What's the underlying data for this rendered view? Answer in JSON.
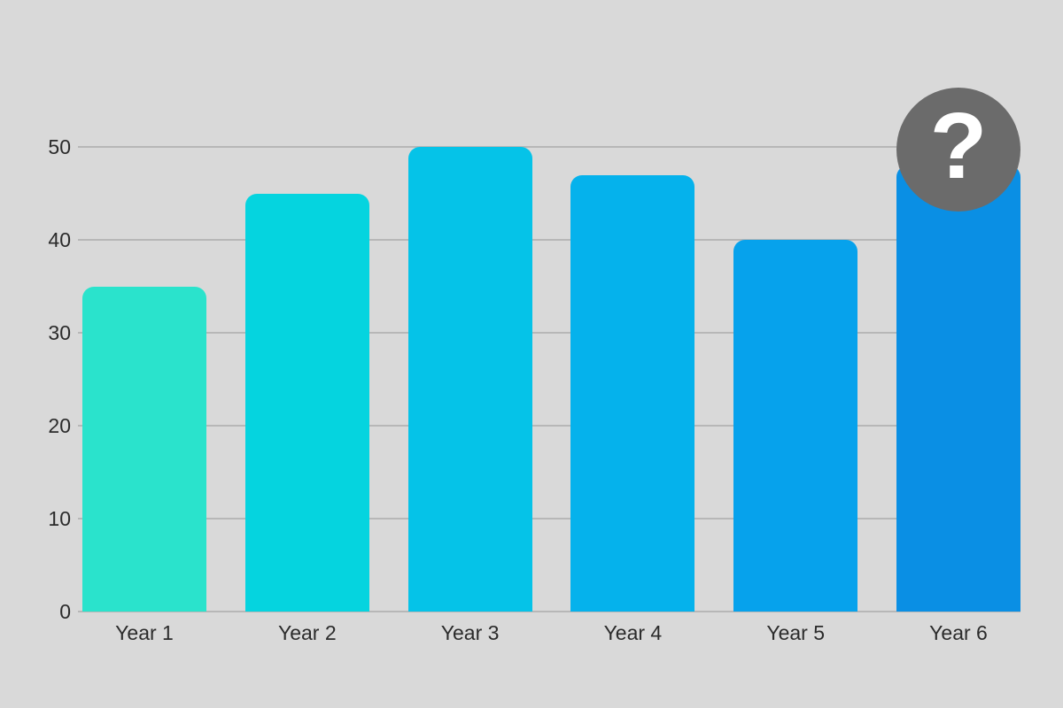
{
  "background_color": "#d9d9d9",
  "gridline_color": "#b7b7b7",
  "axis_text_color": "#2b2b2b",
  "chart_data": {
    "type": "bar",
    "title": "",
    "xlabel": "",
    "ylabel": "",
    "categories": [
      "Year 1",
      "Year 2",
      "Year 3",
      "Year 4",
      "Year 5",
      "Year 6"
    ],
    "values": [
      35,
      45,
      50,
      47,
      40,
      48
    ],
    "bar_colors": [
      "#2ae3cc",
      "#05d4df",
      "#05c3e8",
      "#05b2ec",
      "#06a2ec",
      "#0a8fe4"
    ],
    "yticks": [
      0,
      10,
      20,
      30,
      40,
      50
    ],
    "ylim": [
      0,
      50
    ],
    "grid": true,
    "legend": false,
    "annotation": {
      "symbol": "?",
      "on_category": "Year 6",
      "circle_color": "#6b6b6b",
      "symbol_color": "#ffffff"
    }
  }
}
